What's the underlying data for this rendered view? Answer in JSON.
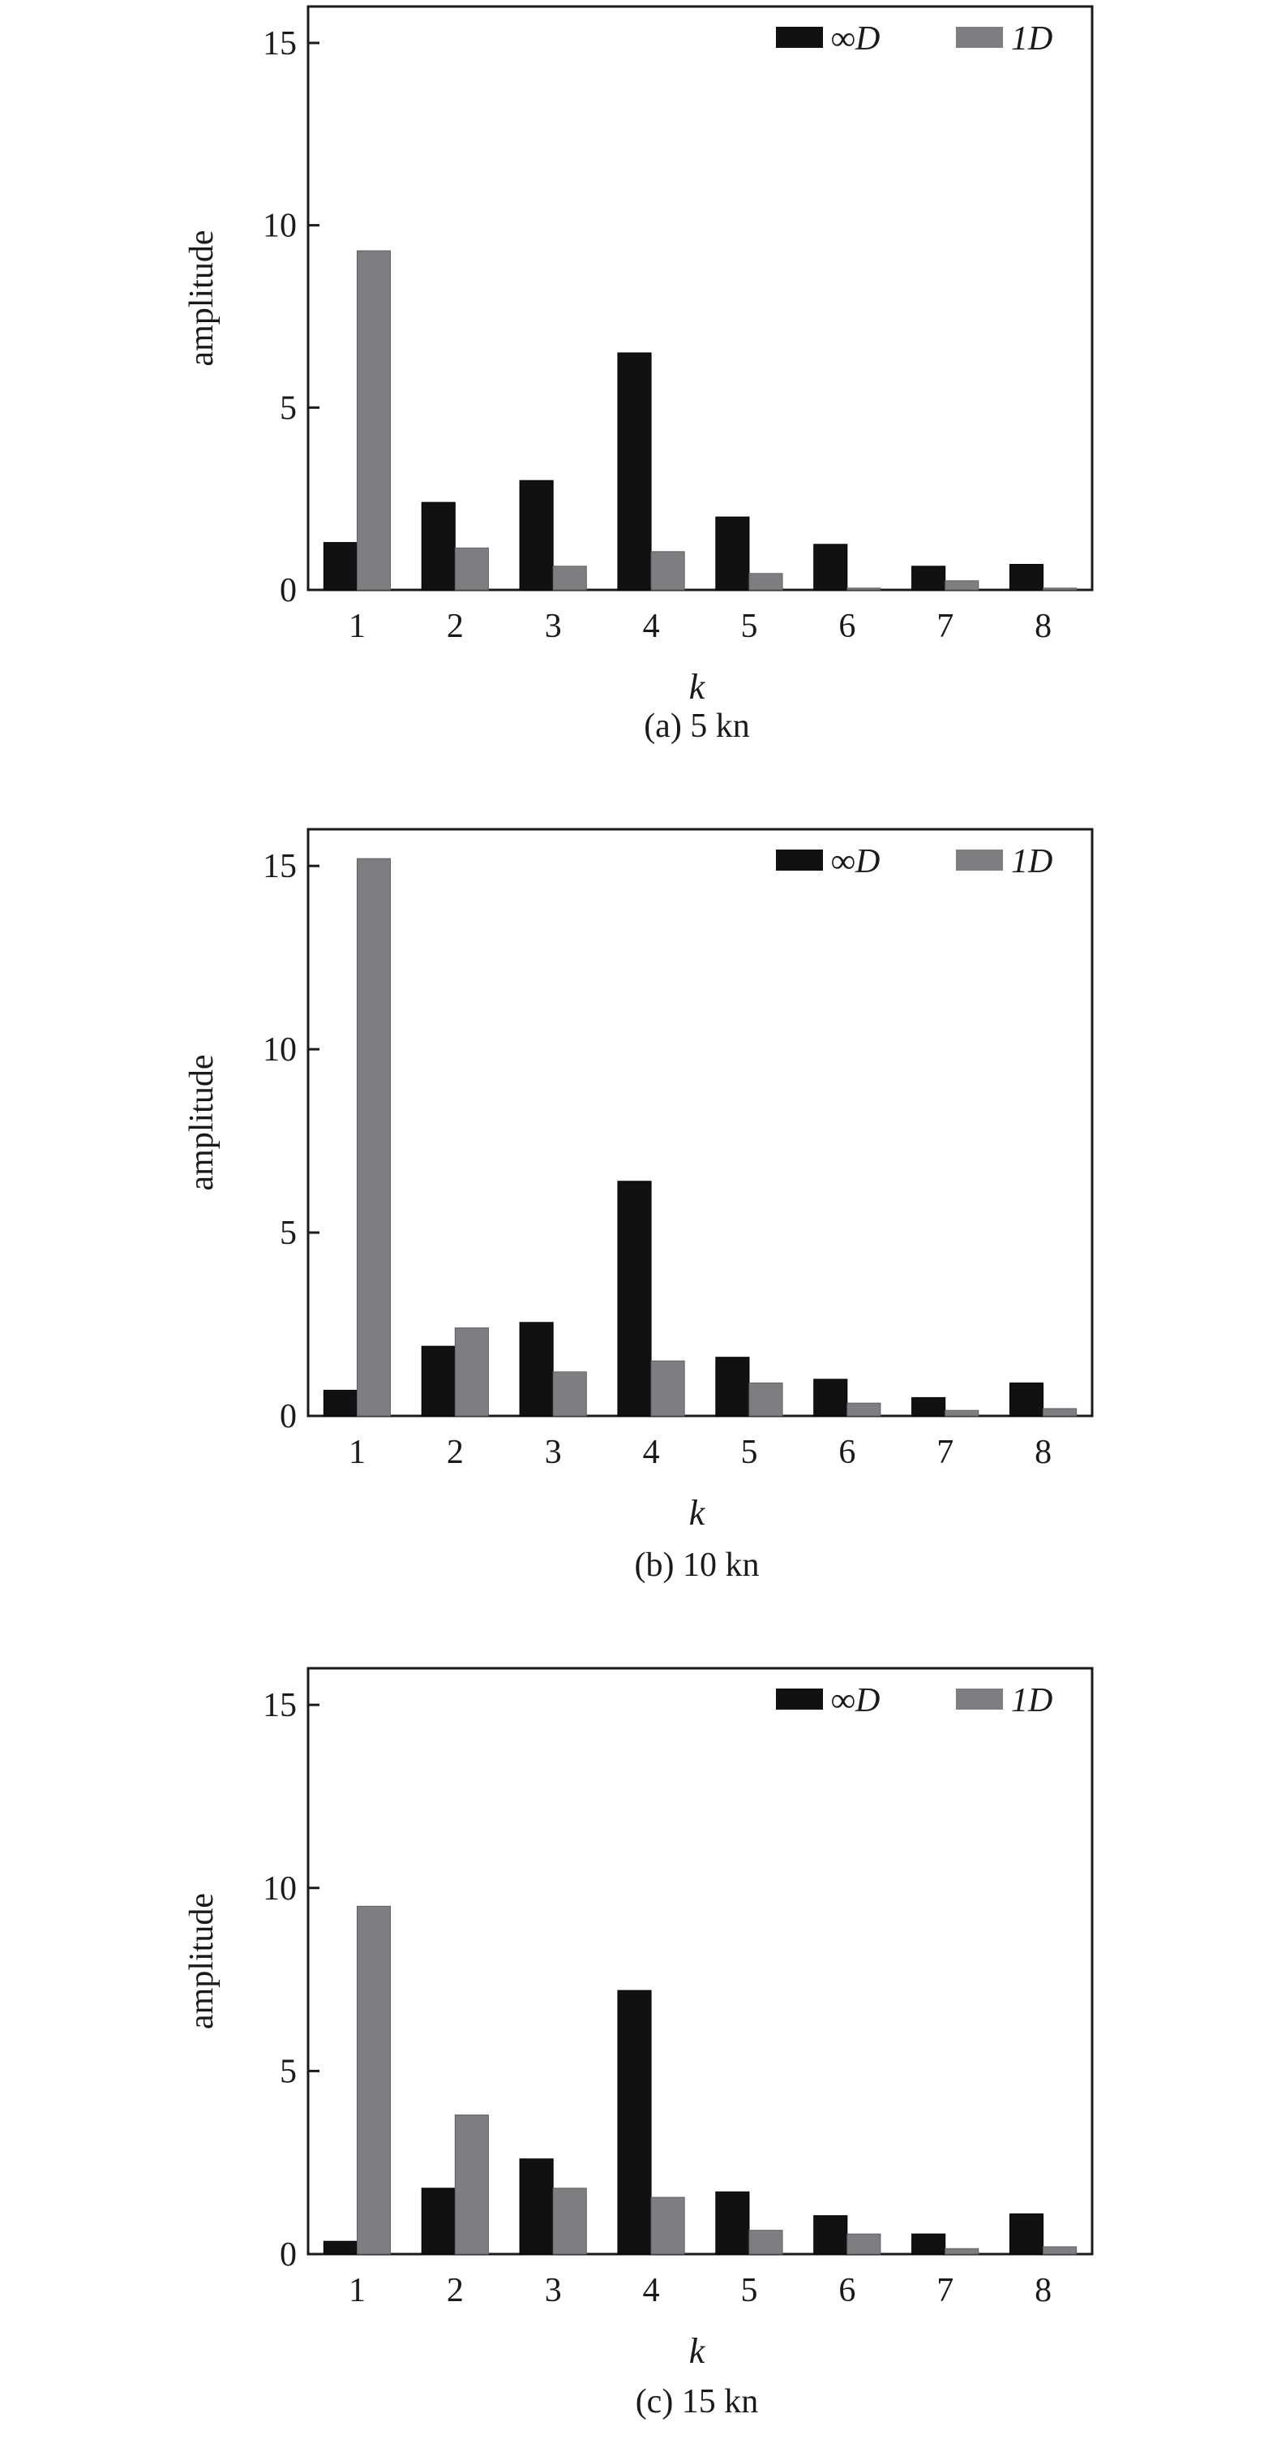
{
  "chart_data": [
    {
      "type": "bar",
      "caption": "(a) 5 kn",
      "xlabel": "k",
      "ylabel": "amplitude",
      "ylim": [
        0,
        16
      ],
      "yticks": [
        0,
        5,
        10,
        15
      ],
      "legend_position": "top-right",
      "categories": [
        "1",
        "2",
        "3",
        "4",
        "5",
        "6",
        "7",
        "8"
      ],
      "series": [
        {
          "name": "∞D",
          "color": "#111111",
          "values": [
            1.3,
            2.4,
            3.0,
            6.5,
            2.0,
            1.25,
            0.65,
            0.7
          ]
        },
        {
          "name": "1D",
          "color": "#7c7e82",
          "values": [
            9.3,
            1.15,
            0.65,
            1.05,
            0.45,
            0.05,
            0.25,
            0.05
          ]
        }
      ]
    },
    {
      "type": "bar",
      "caption": "(b) 10 kn",
      "xlabel": "k",
      "ylabel": "amplitude",
      "ylim": [
        0,
        16
      ],
      "yticks": [
        0,
        5,
        10,
        15
      ],
      "legend_position": "top-right",
      "categories": [
        "1",
        "2",
        "3",
        "4",
        "5",
        "6",
        "7",
        "8"
      ],
      "series": [
        {
          "name": "∞D",
          "color": "#111111",
          "values": [
            0.7,
            1.9,
            2.55,
            6.4,
            1.6,
            1.0,
            0.5,
            0.9
          ]
        },
        {
          "name": "1D",
          "color": "#7c7e82",
          "values": [
            15.2,
            2.4,
            1.2,
            1.5,
            0.9,
            0.35,
            0.15,
            0.2
          ]
        }
      ]
    },
    {
      "type": "bar",
      "caption": "(c) 15 kn",
      "xlabel": "k",
      "ylabel": "amplitude",
      "ylim": [
        0,
        16
      ],
      "yticks": [
        0,
        5,
        10,
        15
      ],
      "legend_position": "top-right",
      "categories": [
        "1",
        "2",
        "3",
        "4",
        "5",
        "6",
        "7",
        "8"
      ],
      "series": [
        {
          "name": "∞D",
          "color": "#111111",
          "values": [
            0.35,
            1.8,
            2.6,
            7.2,
            1.7,
            1.05,
            0.55,
            1.1
          ]
        },
        {
          "name": "1D",
          "color": "#7c7e82",
          "values": [
            9.5,
            3.8,
            1.8,
            1.55,
            0.65,
            0.55,
            0.15,
            0.2
          ]
        }
      ]
    }
  ]
}
